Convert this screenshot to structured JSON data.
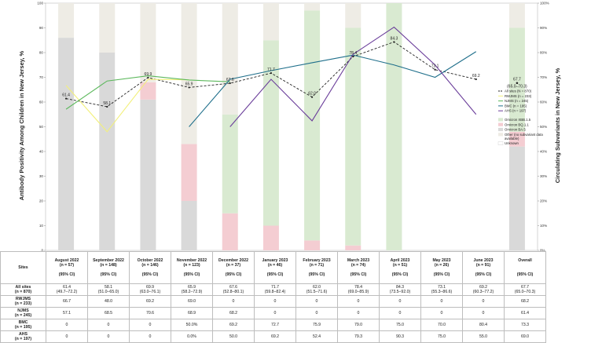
{
  "chart_data": {
    "type": "line+stacked-bar",
    "ylabel_left": "Antibody Positivity Among Children in New Jersey, %",
    "ylabel_right": "Circulating Subvariants in New Jersey, %",
    "ylim": [
      0,
      100
    ],
    "yticks_left": [
      "0",
      "10",
      "20",
      "30",
      "40",
      "50",
      "60",
      "70",
      "80",
      "90",
      "100"
    ],
    "yticks_right": [
      "0%",
      "10%",
      "20%",
      "30%",
      "40%",
      "50%",
      "60%",
      "70%",
      "80%",
      "90%",
      "100%"
    ],
    "categories": [
      "August 2022",
      "September 2022",
      "October 2022",
      "November 2022",
      "December 2022",
      "January 2023",
      "February 2023",
      "March 2023",
      "April 2023",
      "May 2023",
      "June 2023",
      "Overall"
    ],
    "bar_series": [
      {
        "name": "Omicron XBB.1.5",
        "color": "#d9ead1",
        "values": [
          0,
          0,
          0,
          0,
          40,
          75,
          93,
          88,
          100,
          0,
          0,
          42
        ]
      },
      {
        "name": "Omicron BQ.1.1",
        "color": "#f4cdd2",
        "values": [
          0,
          0,
          7,
          23,
          15,
          10,
          4,
          2,
          0,
          0,
          0,
          6
        ]
      },
      {
        "name": "Omicron BA.5",
        "color": "#d9d9d9",
        "values": [
          86,
          80,
          61,
          20,
          0,
          0,
          0,
          0,
          0,
          0,
          0,
          42
        ]
      },
      {
        "name": "Other (no subvariant data available)",
        "color": "#eeece5",
        "values": [
          14,
          20,
          32,
          57,
          45,
          15,
          3,
          10,
          0,
          0,
          0,
          10
        ]
      },
      {
        "name": "Unknown",
        "color": "#ffffff",
        "values": [
          0,
          0,
          0,
          0,
          0,
          0,
          0,
          0,
          0,
          0,
          0,
          0
        ]
      }
    ],
    "line_series": [
      {
        "name": "All sites (N = 870)",
        "color": "#222222",
        "dashed": true,
        "values": [
          61.4,
          58.1,
          69.9,
          65.9,
          67.6,
          71.7,
          62.0,
          78.4,
          84.3,
          73.1,
          69.2,
          null
        ]
      },
      {
        "name": "RWJMS (n = 233)",
        "color": "#f2f07a",
        "values": [
          66.7,
          48.0,
          69.2,
          69.0,
          null,
          null,
          null,
          null,
          null,
          null,
          null,
          null
        ]
      },
      {
        "name": "NJMS (n = 245)",
        "color": "#5cb85c",
        "values": [
          57.1,
          68.5,
          70.6,
          68.9,
          68.2,
          null,
          null,
          null,
          null,
          null,
          null,
          null
        ]
      },
      {
        "name": "BMC (n = 195)",
        "color": "#1f6f8b",
        "values": [
          null,
          null,
          null,
          50.0,
          69.2,
          72.7,
          75.9,
          79.0,
          75.0,
          70.0,
          80.4,
          null
        ]
      },
      {
        "name": "AHS (n = 197)",
        "color": "#6a3d9a",
        "values": [
          null,
          null,
          null,
          null,
          50.0,
          69.2,
          52.4,
          79.3,
          90.3,
          75.0,
          55.0,
          null
        ]
      }
    ],
    "overall_point": {
      "value": 67.7,
      "label": "67.7",
      "ci": "(65.0–70.3)"
    },
    "data_labels": [
      "61.4",
      "58.1",
      "69.9",
      "65.9",
      "67.6",
      "71.7",
      "62.0",
      "78.4",
      "84.3",
      "73.1",
      "69.2"
    ],
    "legend_position": "right"
  },
  "table": {
    "header_row_label": "Sites",
    "columns": [
      {
        "month": "August 2022",
        "n": "(n = 57)"
      },
      {
        "month": "September 2022",
        "n": "(n = 148)"
      },
      {
        "month": "October 2022",
        "n": "(n = 146)"
      },
      {
        "month": "November 2022",
        "n": "(n = 123)"
      },
      {
        "month": "December 2022",
        "n": "(n = 37)"
      },
      {
        "month": "January 2023",
        "n": "(n = 46)"
      },
      {
        "month": "February 2023",
        "n": "(n = 71)"
      },
      {
        "month": "March 2023",
        "n": "(n = 74)"
      },
      {
        "month": "April 2023",
        "n": "(n = 51)"
      },
      {
        "month": "May 2023",
        "n": "(n = 26)"
      },
      {
        "month": "June 2023",
        "n": "(n = 91)"
      },
      {
        "month": "Overall",
        "n": ""
      }
    ],
    "ci_header": "(95% CI)",
    "rows": [
      {
        "site": "All sites",
        "n": "(n = 870)",
        "values": [
          "61.4",
          "58.1",
          "69.9",
          "65.9",
          "67.6",
          "71.7",
          "62.0",
          "78.4",
          "84.3",
          "73.1",
          "69.2",
          "67.7"
        ],
        "ci": [
          "(49.7–72.2)",
          "(51.0–65.0)",
          "(63.0–76.1)",
          "(58.2–72.9)",
          "(52.8–80.1)",
          "(59.8–82.4)",
          "(51.5–71.6)",
          "(69.0–85.9)",
          "(73.5–92.0)",
          "(55.3–86.6)",
          "(60.3–77.2)",
          "(65.0–70.3)"
        ]
      },
      {
        "site": "RWJMS",
        "n": "(n = 233)",
        "values": [
          "66.7",
          "48.0",
          "69.2",
          "69.0",
          "0",
          "0",
          "0",
          "0",
          "0",
          "0",
          "0",
          "68.2"
        ]
      },
      {
        "site": "NJMS",
        "n": "(n = 245)",
        "values": [
          "57.1",
          "68.5",
          "70.6",
          "68.9",
          "68.2",
          "0",
          "0",
          "0",
          "0",
          "0",
          "0",
          "61.4"
        ]
      },
      {
        "site": "BMC",
        "n": "(n = 195)",
        "values": [
          "0",
          "0",
          "0",
          "50.0%",
          "69.2",
          "72.7",
          "75.9",
          "79.0",
          "75.0",
          "70.0",
          "80.4",
          "73.3"
        ]
      },
      {
        "site": "AHS",
        "n": "(n = 197)",
        "values": [
          "0",
          "0",
          "0",
          "0.0%",
          "50.0",
          "69.2",
          "52.4",
          "79.3",
          "90.3",
          "75.0",
          "55.0",
          "69.0"
        ]
      }
    ]
  }
}
